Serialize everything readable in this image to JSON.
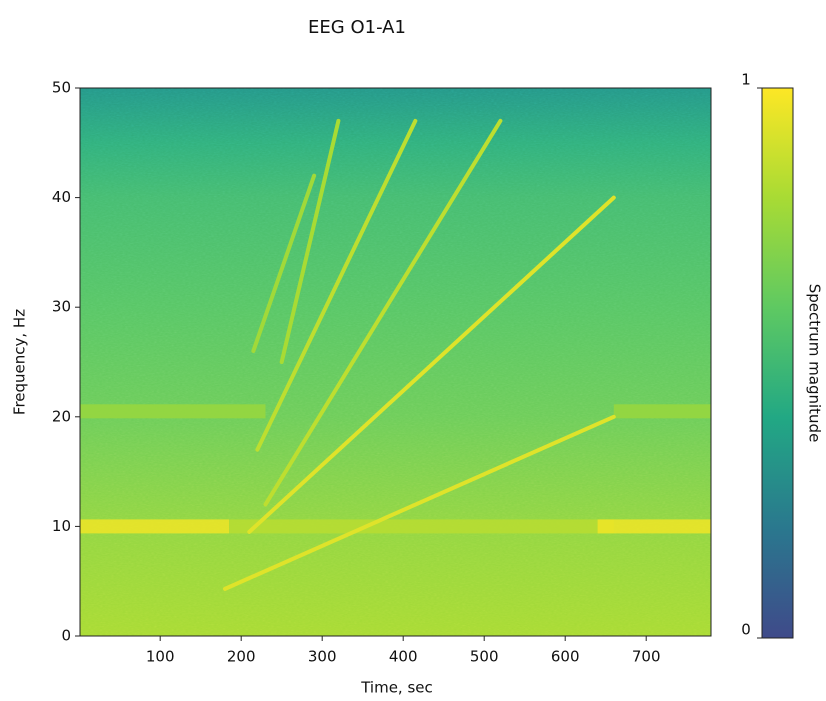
{
  "chart_data": {
    "type": "spectrogram",
    "title": "EEG O1-A1",
    "xlabel": "Time, sec",
    "ylabel": "Frequency, Hz",
    "xlim": [
      1,
      780
    ],
    "ylim": [
      0,
      50
    ],
    "xticks": [
      100,
      200,
      300,
      400,
      500,
      600,
      700
    ],
    "yticks": [
      0,
      10,
      20,
      30,
      40,
      50
    ],
    "colormap": [
      "#3f4a8a",
      "#2a788e",
      "#22a884",
      "#5ec962",
      "#a8db34",
      "#fde725"
    ],
    "clim": [
      0,
      1
    ],
    "cticks": [
      0,
      1
    ],
    "colorbar_label": "Spectrum magnitude",
    "background": {
      "y": [
        0,
        10,
        20,
        30,
        40,
        45,
        50
      ],
      "values": [
        0.8,
        0.74,
        0.64,
        0.58,
        0.52,
        0.45,
        0.33
      ]
    },
    "bands": [
      {
        "y": 10,
        "x": [
          1,
          185
        ],
        "value": 0.97
      },
      {
        "y": 10,
        "x": [
          185,
          660
        ],
        "value": 0.84
      },
      {
        "y": 10,
        "x": [
          640,
          780
        ],
        "value": 0.97
      },
      {
        "y": 20.5,
        "x": [
          1,
          230
        ],
        "value": 0.76
      },
      {
        "y": 20.5,
        "x": [
          660,
          780
        ],
        "value": 0.76
      }
    ],
    "sweeps": [
      {
        "x": [
          180,
          660
        ],
        "y": [
          4.3,
          20
        ],
        "value": 0.93
      },
      {
        "x": [
          210,
          660
        ],
        "y": [
          9.5,
          40
        ],
        "value": 0.93
      },
      {
        "x": [
          230,
          520
        ],
        "y": [
          12,
          47
        ],
        "value": 0.85
      },
      {
        "x": [
          220,
          415
        ],
        "y": [
          17,
          47
        ],
        "value": 0.85
      },
      {
        "x": [
          250,
          320
        ],
        "y": [
          25,
          47
        ],
        "value": 0.8
      },
      {
        "x": [
          215,
          290
        ],
        "y": [
          26,
          42
        ],
        "value": 0.78
      }
    ]
  }
}
